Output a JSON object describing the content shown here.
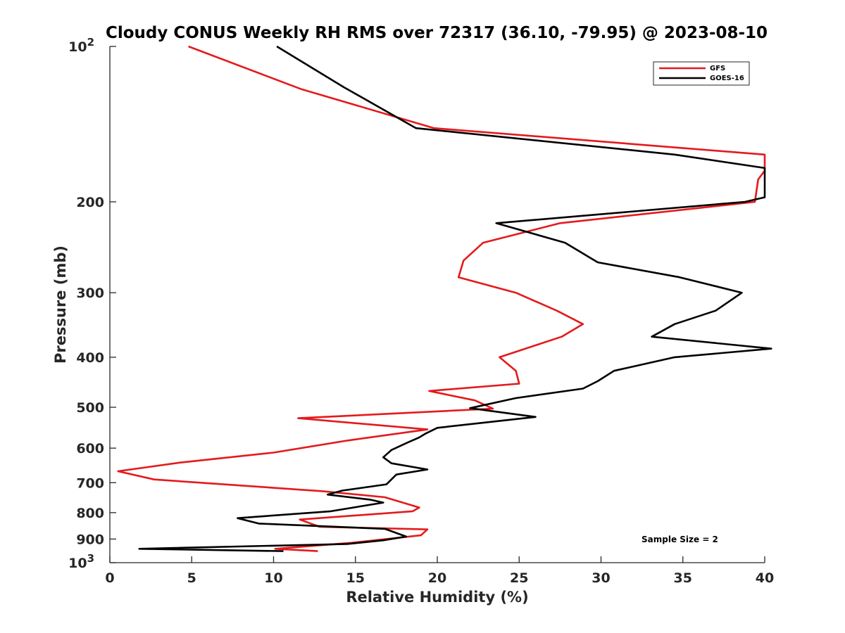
{
  "chart_data": {
    "type": "line",
    "title": "Cloudy CONUS Weekly RH RMS over 72317 (36.10, -79.95) @ 2023-08-10",
    "xlabel": "Relative Humidity (%)",
    "ylabel": "Pressure (mb)",
    "xlim": [
      0,
      40
    ],
    "ylim": [
      100,
      1000
    ],
    "yscale": "log",
    "y_reversed": true,
    "grid": false,
    "legend_position": "top-right",
    "x_ticks": [
      {
        "value": 0,
        "label": "0"
      },
      {
        "value": 5,
        "label": "5"
      },
      {
        "value": 10,
        "label": "10"
      },
      {
        "value": 15,
        "label": "15"
      },
      {
        "value": 20,
        "label": "20"
      },
      {
        "value": 25,
        "label": "25"
      },
      {
        "value": 30,
        "label": "30"
      },
      {
        "value": 35,
        "label": "35"
      },
      {
        "value": 40,
        "label": "40"
      }
    ],
    "y_ticks": [
      {
        "value": 100,
        "base": "10",
        "exp": "2"
      },
      {
        "value": 200,
        "label": "200"
      },
      {
        "value": 300,
        "label": "300"
      },
      {
        "value": 400,
        "label": "400"
      },
      {
        "value": 500,
        "label": "500"
      },
      {
        "value": 600,
        "label": "600"
      },
      {
        "value": 700,
        "label": "700"
      },
      {
        "value": 800,
        "label": "800"
      },
      {
        "value": 900,
        "label": "900"
      },
      {
        "value": 1000,
        "base": "10",
        "exp": "3"
      }
    ],
    "annotation": "Sample Size = 2",
    "series": [
      {
        "name": "GFS",
        "color": "#e41a1c",
        "points": [
          {
            "x": 4.8,
            "y": 100
          },
          {
            "x": 11.7,
            "y": 121
          },
          {
            "x": 19.8,
            "y": 144
          },
          {
            "x": 40.0,
            "y": 162
          },
          {
            "x": 40.0,
            "y": 174
          },
          {
            "x": 39.6,
            "y": 181
          },
          {
            "x": 39.4,
            "y": 200
          },
          {
            "x": 27.5,
            "y": 220
          },
          {
            "x": 22.8,
            "y": 240
          },
          {
            "x": 21.6,
            "y": 260
          },
          {
            "x": 21.3,
            "y": 280
          },
          {
            "x": 24.8,
            "y": 300
          },
          {
            "x": 27.3,
            "y": 325
          },
          {
            "x": 28.9,
            "y": 345
          },
          {
            "x": 27.6,
            "y": 365
          },
          {
            "x": 23.8,
            "y": 400
          },
          {
            "x": 24.8,
            "y": 425
          },
          {
            "x": 25.0,
            "y": 450
          },
          {
            "x": 19.5,
            "y": 465
          },
          {
            "x": 22.3,
            "y": 485
          },
          {
            "x": 23.4,
            "y": 503
          },
          {
            "x": 11.5,
            "y": 525
          },
          {
            "x": 19.4,
            "y": 552
          },
          {
            "x": 14.5,
            "y": 580
          },
          {
            "x": 10.0,
            "y": 612
          },
          {
            "x": 4.3,
            "y": 640
          },
          {
            "x": 0.5,
            "y": 665
          },
          {
            "x": 2.7,
            "y": 690
          },
          {
            "x": 13.0,
            "y": 727
          },
          {
            "x": 16.8,
            "y": 747
          },
          {
            "x": 18.9,
            "y": 782
          },
          {
            "x": 18.5,
            "y": 795
          },
          {
            "x": 11.6,
            "y": 825
          },
          {
            "x": 12.8,
            "y": 852
          },
          {
            "x": 19.4,
            "y": 862
          },
          {
            "x": 19.0,
            "y": 885
          },
          {
            "x": 14.8,
            "y": 915
          },
          {
            "x": 10.1,
            "y": 940
          },
          {
            "x": 12.7,
            "y": 950
          }
        ]
      },
      {
        "name": "GOES-16",
        "color": "#000000",
        "points": [
          {
            "x": 10.2,
            "y": 100
          },
          {
            "x": 14.3,
            "y": 120
          },
          {
            "x": 18.7,
            "y": 144
          },
          {
            "x": 34.5,
            "y": 162
          },
          {
            "x": 40.0,
            "y": 172
          },
          {
            "x": 40.0,
            "y": 196
          },
          {
            "x": 38.8,
            "y": 200
          },
          {
            "x": 23.6,
            "y": 220
          },
          {
            "x": 27.8,
            "y": 240
          },
          {
            "x": 29.8,
            "y": 262
          },
          {
            "x": 34.8,
            "y": 280
          },
          {
            "x": 38.6,
            "y": 300
          },
          {
            "x": 37.0,
            "y": 325
          },
          {
            "x": 34.5,
            "y": 345
          },
          {
            "x": 33.1,
            "y": 365
          },
          {
            "x": 40.4,
            "y": 385
          },
          {
            "x": 34.5,
            "y": 400
          },
          {
            "x": 30.8,
            "y": 425
          },
          {
            "x": 29.8,
            "y": 445
          },
          {
            "x": 28.9,
            "y": 460
          },
          {
            "x": 24.8,
            "y": 480
          },
          {
            "x": 22.0,
            "y": 502
          },
          {
            "x": 26.0,
            "y": 522
          },
          {
            "x": 20.0,
            "y": 548
          },
          {
            "x": 19.3,
            "y": 562
          },
          {
            "x": 18.9,
            "y": 572
          },
          {
            "x": 18.2,
            "y": 585
          },
          {
            "x": 17.2,
            "y": 605
          },
          {
            "x": 16.7,
            "y": 625
          },
          {
            "x": 17.2,
            "y": 642
          },
          {
            "x": 19.4,
            "y": 660
          },
          {
            "x": 17.5,
            "y": 675
          },
          {
            "x": 16.9,
            "y": 705
          },
          {
            "x": 14.2,
            "y": 725
          },
          {
            "x": 13.3,
            "y": 738
          },
          {
            "x": 15.9,
            "y": 755
          },
          {
            "x": 16.7,
            "y": 765
          },
          {
            "x": 13.5,
            "y": 795
          },
          {
            "x": 7.8,
            "y": 820
          },
          {
            "x": 9.1,
            "y": 840
          },
          {
            "x": 16.8,
            "y": 860
          },
          {
            "x": 18.1,
            "y": 890
          },
          {
            "x": 16.7,
            "y": 905
          },
          {
            "x": 14.5,
            "y": 920
          },
          {
            "x": 1.8,
            "y": 940
          },
          {
            "x": 10.6,
            "y": 950
          }
        ]
      }
    ]
  }
}
